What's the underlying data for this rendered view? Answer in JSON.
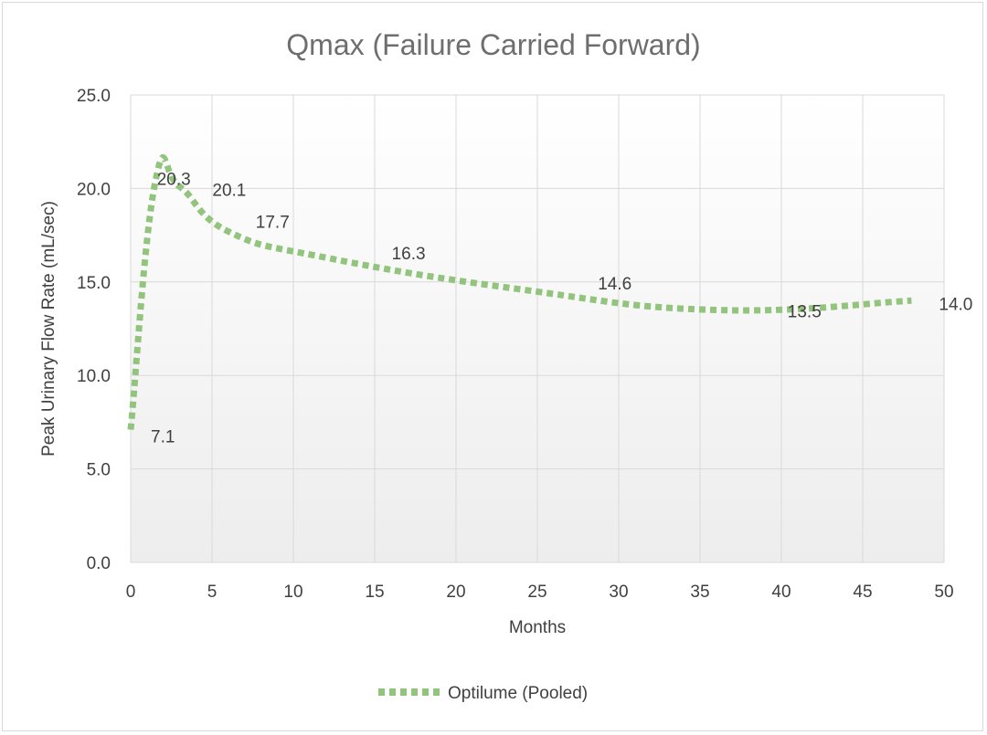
{
  "chart_data": {
    "type": "line",
    "title": "Qmax (Failure Carried Forward)",
    "xlabel": "Months",
    "ylabel": "Peak Urinary Flow Rate  (mL/sec)",
    "xlim": [
      0,
      50
    ],
    "ylim": [
      0,
      25
    ],
    "x_ticks": [
      "0",
      "5",
      "10",
      "15",
      "20",
      "25",
      "30",
      "35",
      "40",
      "45",
      "50"
    ],
    "y_ticks": [
      "0.0",
      "5.0",
      "10.0",
      "15.0",
      "20.0",
      "25.0"
    ],
    "grid": true,
    "legend_position": "bottom",
    "series": [
      {
        "name": "Optilume (Pooled)",
        "color": "#93c47d",
        "style": "dotted",
        "x": [
          0,
          1.5,
          3,
          6,
          12,
          24,
          36,
          48
        ],
        "y": [
          7.1,
          20.3,
          20.1,
          17.7,
          16.3,
          14.6,
          13.5,
          14.0
        ],
        "labels": [
          "7.1",
          "20.3",
          "20.1",
          "17.7",
          "16.3",
          "14.6",
          "13.5",
          "14.0"
        ]
      }
    ]
  }
}
